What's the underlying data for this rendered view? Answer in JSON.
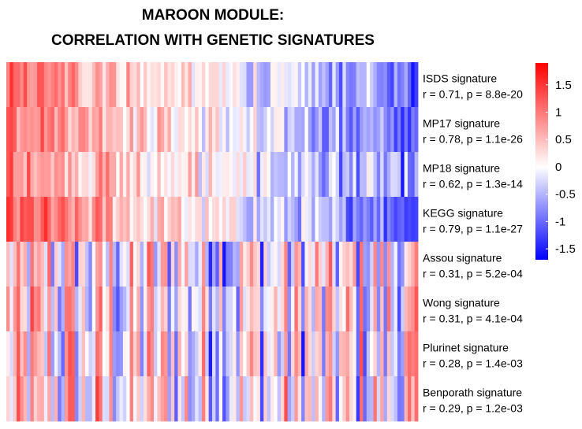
{
  "chart_data": {
    "type": "heatmap",
    "title_lines": [
      "MAROON MODULE:",
      "CORRELATION WITH GENETIC SIGNATURES"
    ],
    "rows": [
      {
        "label": "ISDS signature",
        "stat": "r = 0.71, p = 8.8e-20",
        "r": 0.71,
        "p": "8.8e-20"
      },
      {
        "label": "MP17 signature",
        "stat": "r = 0.78, p = 1.1e-26",
        "r": 0.78,
        "p": "1.1e-26"
      },
      {
        "label": "MP18 signature",
        "stat": "r = 0.62, p = 1.3e-14",
        "r": 0.62,
        "p": "1.3e-14"
      },
      {
        "label": "KEGG signature",
        "stat": "r = 0.79, p = 1.1e-27",
        "r": 0.79,
        "p": "1.1e-27"
      },
      {
        "label": "Assou signature",
        "stat": "r = 0.31, p = 5.2e-04",
        "r": 0.31,
        "p": "5.2e-04"
      },
      {
        "label": "Wong signature",
        "stat": "r = 0.31, p = 4.1e-04",
        "r": 0.31,
        "p": "4.1e-04"
      },
      {
        "label": "Plurinet signature",
        "stat": "r = 0.28, p = 1.4e-03",
        "r": 0.28,
        "p": "1.4e-03"
      },
      {
        "label": "Benporath signature",
        "stat": "r = 0.29, p = 1.2e-03",
        "r": 0.29,
        "p": "1.2e-03"
      }
    ],
    "n_columns": 120,
    "color_scale": {
      "min": -1.7,
      "max": 1.9,
      "low": "#0000ff",
      "mid": "#ffffff",
      "high": "#ff0000",
      "ticks": [
        1.5,
        1,
        0.5,
        0,
        -0.5,
        -1,
        -1.5
      ],
      "tick_labels": [
        "1.5",
        "1",
        "0.5",
        "0",
        "-0.5",
        "-1",
        "-1.5"
      ]
    },
    "legend_position": "right"
  }
}
